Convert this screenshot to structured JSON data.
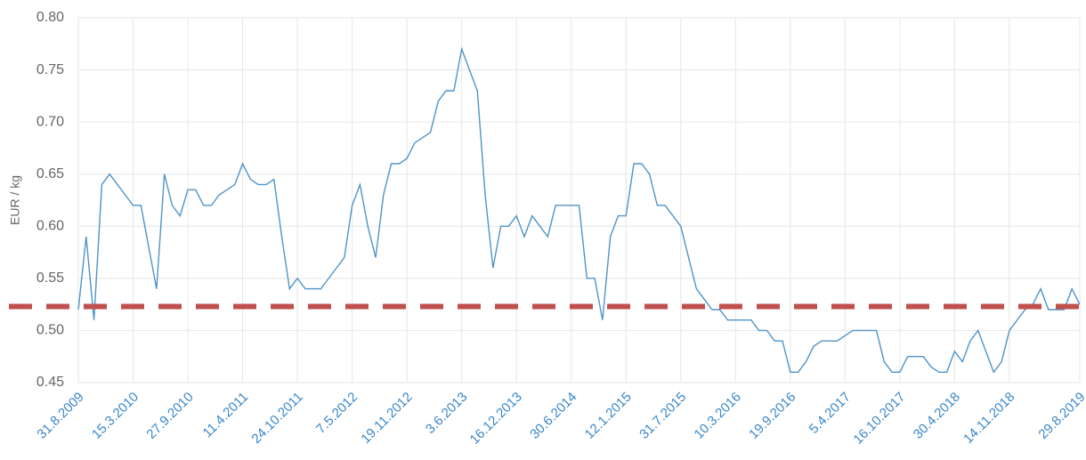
{
  "chart_data": {
    "type": "line",
    "ylabel": "EUR / kg",
    "categories": [
      "31.8.2009",
      null,
      null,
      null,
      null,
      null,
      null,
      "15.3.2010",
      null,
      null,
      null,
      null,
      null,
      null,
      "27.9.2010",
      null,
      null,
      null,
      null,
      null,
      null,
      "11.4.2011",
      null,
      null,
      null,
      null,
      null,
      null,
      "24.10.2011",
      null,
      null,
      null,
      null,
      null,
      null,
      "7.5.2012",
      null,
      null,
      null,
      null,
      null,
      null,
      "19.11.2012",
      null,
      null,
      null,
      null,
      null,
      null,
      "3.6.2013",
      null,
      null,
      null,
      null,
      null,
      null,
      "16.12.2013",
      null,
      null,
      null,
      null,
      null,
      null,
      "30.6.2014",
      null,
      null,
      null,
      null,
      null,
      null,
      "12.1.2015",
      null,
      null,
      null,
      null,
      null,
      null,
      "31.7.2015",
      null,
      null,
      null,
      null,
      null,
      null,
      "10.3.2016",
      null,
      null,
      null,
      null,
      null,
      null,
      "19.9.2016",
      null,
      null,
      null,
      null,
      null,
      null,
      "5.4.2017",
      null,
      null,
      null,
      null,
      null,
      null,
      "16.10.2017",
      null,
      null,
      null,
      null,
      null,
      null,
      "30.4.2018",
      null,
      null,
      null,
      null,
      null,
      null,
      "14.11.2018",
      null,
      null,
      null,
      null,
      null,
      null,
      null,
      null,
      "29.8.2019"
    ],
    "series": [
      {
        "color": "#4f94c8",
        "values": [
          0.52,
          0.59,
          0.51,
          0.64,
          0.65,
          0.64,
          0.63,
          0.62,
          0.62,
          0.58,
          0.54,
          0.65,
          0.62,
          0.61,
          0.635,
          0.635,
          0.62,
          0.62,
          0.63,
          0.635,
          0.64,
          0.66,
          0.645,
          0.64,
          0.64,
          0.645,
          0.59,
          0.54,
          0.55,
          0.54,
          0.54,
          0.54,
          0.55,
          0.56,
          0.57,
          0.62,
          0.64,
          0.6,
          0.57,
          0.63,
          0.66,
          0.66,
          0.665,
          0.68,
          0.685,
          0.69,
          0.72,
          0.73,
          0.73,
          0.77,
          0.75,
          0.73,
          0.63,
          0.56,
          0.6,
          0.6,
          0.61,
          0.59,
          0.61,
          0.6,
          0.59,
          0.62,
          0.62,
          0.62,
          0.62,
          0.55,
          0.55,
          0.51,
          0.59,
          0.61,
          0.61,
          0.66,
          0.66,
          0.65,
          0.62,
          0.62,
          0.61,
          0.6,
          0.57,
          0.54,
          0.53,
          0.52,
          0.52,
          0.51,
          0.51,
          0.51,
          0.51,
          0.5,
          0.5,
          0.49,
          0.49,
          0.46,
          0.46,
          0.47,
          0.485,
          0.49,
          0.49,
          0.49,
          0.495,
          0.5,
          0.5,
          0.5,
          0.5,
          0.47,
          0.46,
          0.46,
          0.475,
          0.475,
          0.475,
          0.465,
          0.46,
          0.46,
          0.48,
          0.47,
          0.49,
          0.5,
          0.48,
          0.46,
          0.47,
          0.5,
          0.51,
          0.52,
          0.525,
          0.54,
          0.52,
          0.52,
          0.52,
          0.54,
          0.525
        ]
      }
    ],
    "reference_line": {
      "value": 0.523,
      "color": "#c0504d"
    },
    "ylim": [
      0.45,
      0.8
    ],
    "yticks": [
      0.45,
      {
        "value": 0.5,
        "label": "0.50"
      },
      0.55,
      {
        "value": 0.6,
        "label": "0.60"
      },
      0.65,
      {
        "value": 0.7,
        "label": "0.70"
      },
      0.75,
      {
        "value": 0.8,
        "label": "0.80"
      }
    ],
    "grid": true
  }
}
